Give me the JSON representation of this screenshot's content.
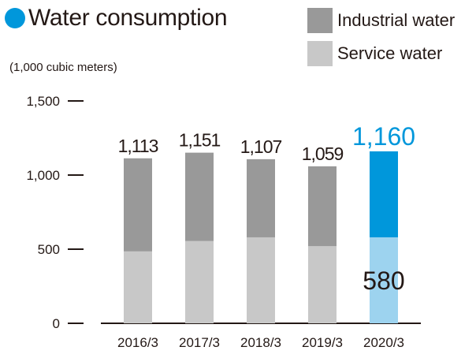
{
  "title": "Water consumption",
  "colors": {
    "accent": "#0097DB",
    "accent_light": "#9DD3EF",
    "industrial": "#999999",
    "service": "#C8C8C8",
    "text": "#231815"
  },
  "legend": [
    {
      "label": "Industrial water",
      "color": "#999999"
    },
    {
      "label": "Service water",
      "color": "#C8C8C8"
    }
  ],
  "chart_data": {
    "type": "bar",
    "stacked": true,
    "categories": [
      "2016/3",
      "2017/3",
      "2018/3",
      "2019/3",
      "2020/3"
    ],
    "series": [
      {
        "name": "Service water",
        "values": [
          485,
          555,
          580,
          520,
          580
        ]
      },
      {
        "name": "Industrial water",
        "values": [
          628,
          596,
          527,
          539,
          580
        ]
      }
    ],
    "totals": [
      "1,113",
      "1,151",
      "1,107",
      "1,059",
      "1,160"
    ],
    "highlight_index": 4,
    "highlight_service_label": "580",
    "ylabel": "(1,000 cubic meters)",
    "yticks": [
      0,
      500,
      1000,
      1500
    ],
    "ytick_labels": [
      "0",
      "500",
      "1,000",
      "1,500"
    ],
    "ylim": [
      0,
      1500
    ],
    "grid": false,
    "legend_position": "top-right"
  }
}
